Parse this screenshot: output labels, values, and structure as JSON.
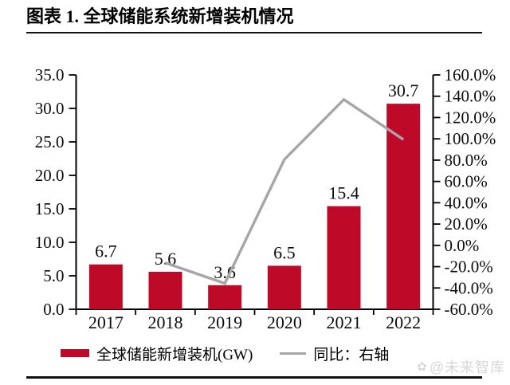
{
  "title": "图表 1. 全球储能系统新增装机情况",
  "watermark": "@未来智库",
  "colors": {
    "bar": "#be0a28",
    "line": "#a6a6a6",
    "axis": "#000000",
    "watermark": "#d7d7d7"
  },
  "legend": {
    "bar_label": "全球储能新增装机(GW)",
    "line_label": "同比：右轴"
  },
  "chart_data": {
    "type": "bar+line",
    "title": "图表 1. 全球储能系统新增装机情况",
    "categories": [
      "2017",
      "2018",
      "2019",
      "2020",
      "2021",
      "2022"
    ],
    "series": [
      {
        "name": "全球储能新增装机(GW)",
        "type": "bar",
        "axis": "left",
        "values": [
          6.7,
          5.6,
          3.6,
          6.5,
          15.4,
          30.7
        ],
        "labels": [
          "6.7",
          "5.6",
          "3.6",
          "6.5",
          "15.4",
          "30.7"
        ]
      },
      {
        "name": "同比：右轴",
        "type": "line",
        "axis": "right",
        "values": [
          null,
          -16.4,
          -35.7,
          80.6,
          136.9,
          99.4
        ]
      }
    ],
    "left_axis": {
      "min": 0,
      "max": 35,
      "step": 5,
      "tick_labels": [
        "0.0",
        "5.0",
        "10.0",
        "15.0",
        "20.0",
        "25.0",
        "30.0",
        "35.0"
      ]
    },
    "right_axis": {
      "min": -60,
      "max": 160,
      "step": 20,
      "tick_labels": [
        "-60.0%",
        "-40.0%",
        "-20.0%",
        "0.0%",
        "20.0%",
        "40.0%",
        "60.0%",
        "80.0%",
        "100.0%",
        "120.0%",
        "140.0%",
        "160.0%"
      ]
    },
    "grid": false,
    "legend_position": "bottom"
  }
}
